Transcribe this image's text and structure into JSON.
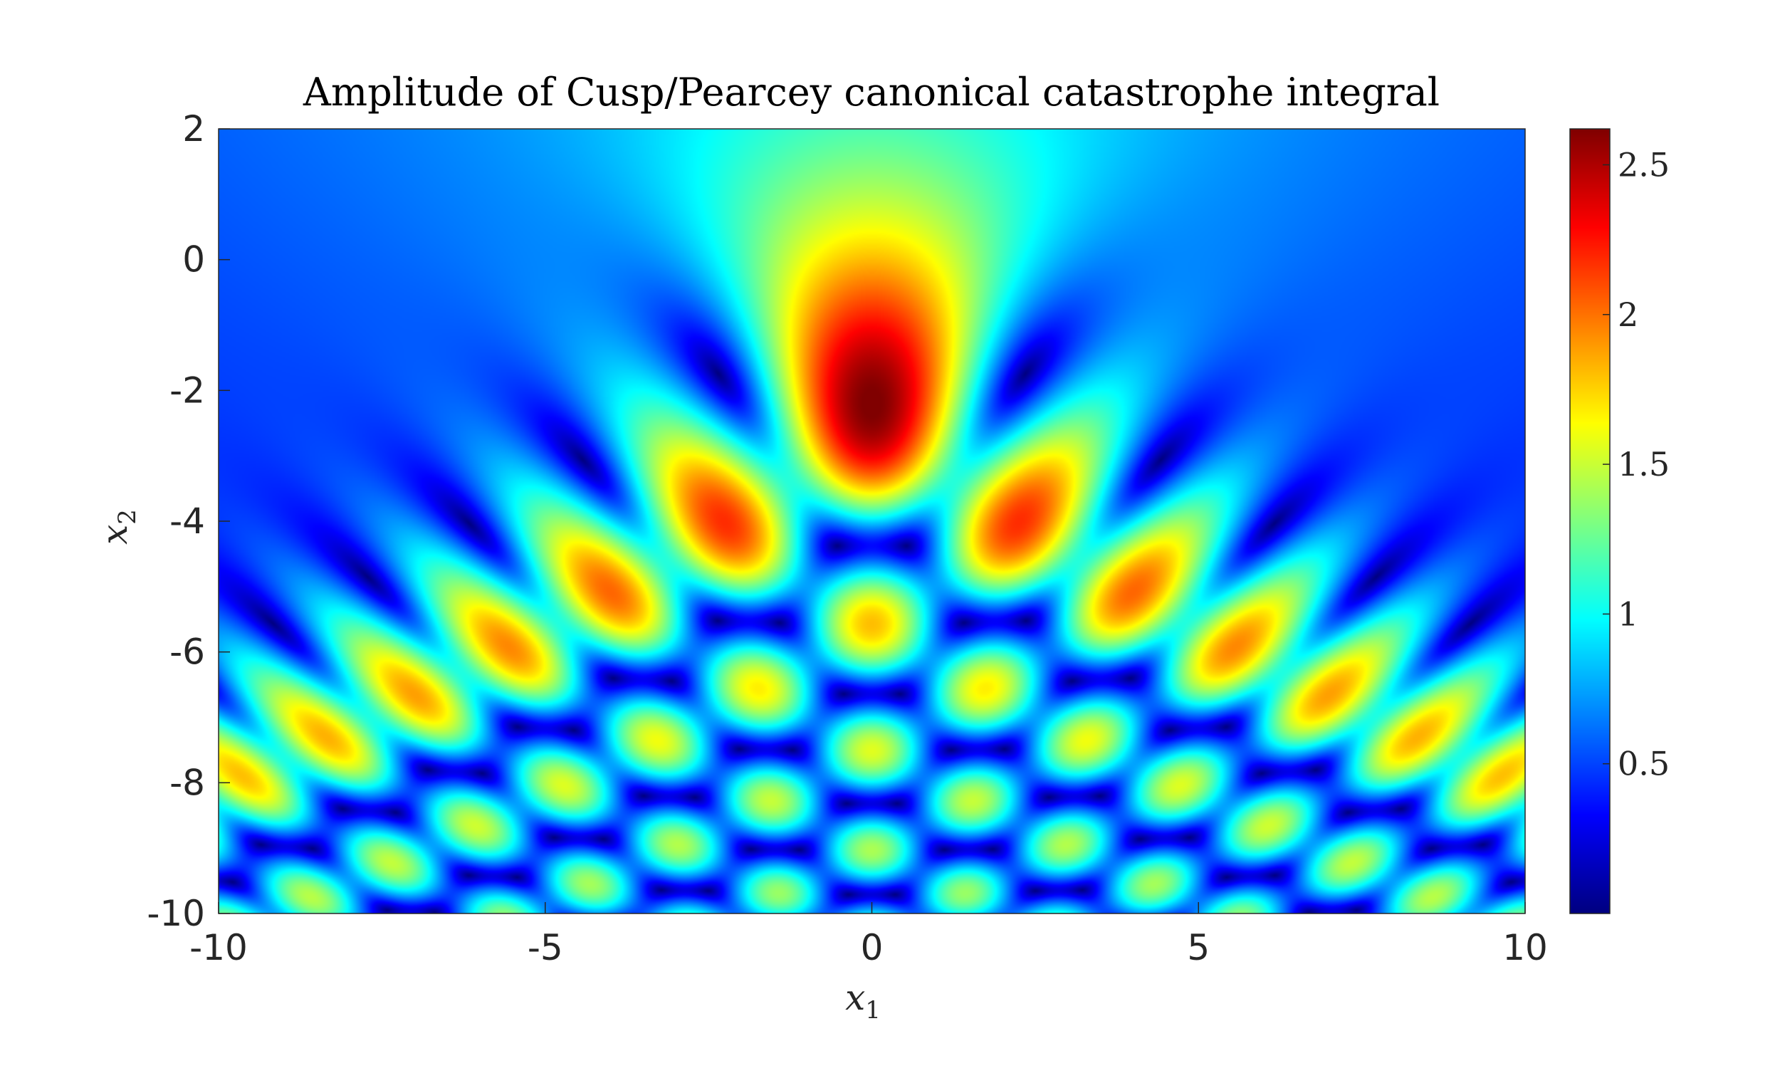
{
  "chart_data": {
    "type": "heatmap",
    "title": "Amplitude of Cusp/Pearcey canonical catastrophe integral",
    "xlabel": {
      "base": "x",
      "sub": "1"
    },
    "ylabel": {
      "base": "x",
      "sub": "2"
    },
    "xlim": [
      -10,
      10
    ],
    "ylim": [
      -10,
      2
    ],
    "x_ticks": [
      {
        "value": -10,
        "label": "-10"
      },
      {
        "value": -5,
        "label": "-5"
      },
      {
        "value": 0,
        "label": "0"
      },
      {
        "value": 5,
        "label": "5"
      },
      {
        "value": 10,
        "label": "10"
      }
    ],
    "y_ticks": [
      {
        "value": 2,
        "label": "2"
      },
      {
        "value": 0,
        "label": "0"
      },
      {
        "value": -2,
        "label": "-2"
      },
      {
        "value": -4,
        "label": "-4"
      },
      {
        "value": -6,
        "label": "-6"
      },
      {
        "value": -8,
        "label": "-8"
      },
      {
        "value": -10,
        "label": "-10"
      }
    ],
    "colormap": "jet",
    "clim": [
      0,
      2.62
    ],
    "colorbar_ticks": [
      {
        "value": 0.5,
        "label": "0.5"
      },
      {
        "value": 1,
        "label": "1"
      },
      {
        "value": 1.5,
        "label": "1.5"
      },
      {
        "value": 2,
        "label": "2"
      },
      {
        "value": 2.5,
        "label": "2.5"
      }
    ],
    "peak": {
      "x": 0,
      "y": -2.1,
      "value": 2.62
    },
    "grid": false
  }
}
